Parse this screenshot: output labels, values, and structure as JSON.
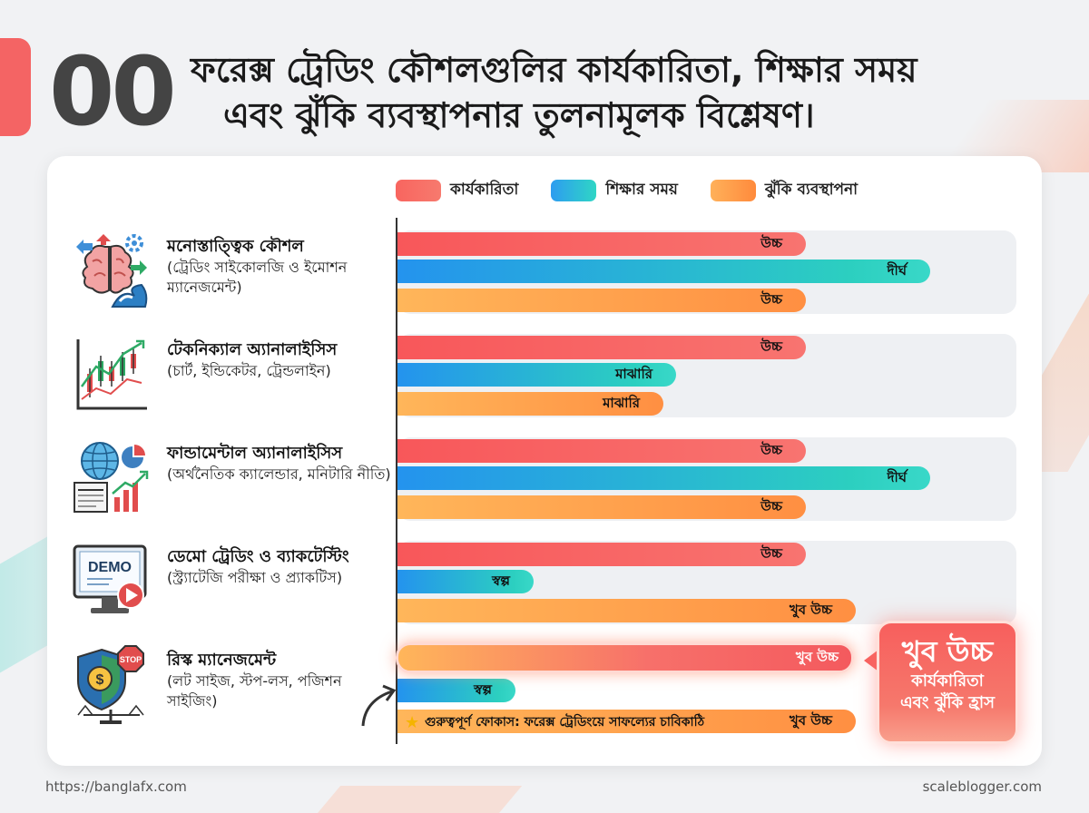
{
  "header": {
    "number": "00",
    "title_line1": "ফরেক্স ট্রেডিং কৌশলগুলির কার্যকারিতা, শিক্ষার সময়",
    "title_line2": "এবং ঝুঁকি ব্যবস্থাপনার তুলনামূলক বিশ্লেষণ।"
  },
  "legend": {
    "effectiveness": "কার্যকারিতা",
    "learning_time": "শিক্ষার সময়",
    "risk_management": "ঝুঁকি ব্যবস্থাপনা"
  },
  "colors": {
    "effectiveness": "#f8655f",
    "learning_time": "#2fc6c8",
    "risk_management": "#ff9a45"
  },
  "rows": [
    {
      "title": "মনোস্তাত্ত্বিক কৌশল",
      "subtitle": "(ট্রেডিং সাইকোলজি ও ইমোশন ম্যানেজমেন্ট)",
      "icon": "brain-gears-icon",
      "labels": [
        "উচ্চ",
        "দীর্ঘ",
        "উচ্চ"
      ]
    },
    {
      "title": "টেকনিক্যাল অ্যানালাইসিস",
      "subtitle": "(চার্ট, ইন্ডিকেটর, ট্রেন্ডলাইন)",
      "icon": "candlestick-chart-icon",
      "labels": [
        "উচ্চ",
        "মাঝারি",
        "মাঝারি"
      ]
    },
    {
      "title": "ফান্ডামেন্টাল অ্যানালাইসিস",
      "subtitle": "(অর্থনৈতিক ক্যালেন্ডার, মনিটারি নীতি)",
      "icon": "globe-news-icon",
      "labels": [
        "উচ্চ",
        "দীর্ঘ",
        "উচ্চ"
      ]
    },
    {
      "title": "ডেমো ট্রেডিং ও ব্যাকটেস্টিং",
      "subtitle": "(স্ট্র্যাটেজি পরীক্ষা ও প্র্যাকটিস)",
      "icon": "demo-monitor-icon",
      "icon_text": "DEMO",
      "labels": [
        "উচ্চ",
        "স্বল্প",
        "খুব উচ্চ"
      ]
    },
    {
      "title": "রিস্ক ম্যানেজমেন্ট",
      "subtitle": "(লট সাইজ, স্টপ-লস, পজিশন সাইজিং)",
      "icon": "shield-stop-icon",
      "icon_text": "STOP",
      "labels": [
        "খুব উচ্চ",
        "স্বল্প",
        "খুব উচ্চ"
      ]
    }
  ],
  "focus_note": "গুরুত্বপূর্ণ ফোকাস: ফরেক্স ট্রেডিংয়ে সাফল্যের চাবিকাঠি",
  "callout": {
    "big": "খুব উচ্চ",
    "line1": "কার্যকারিতা",
    "line2": "এবং ঝুঁকি হ্রাস"
  },
  "footer": {
    "left": "https://banglafx.com",
    "right": "scaleblogger.com"
  },
  "chart_data": {
    "type": "bar",
    "orientation": "horizontal",
    "categories": [
      "মনোস্তাত্ত্বিক কৌশল",
      "টেকনিক্যাল অ্যানালাইসিস",
      "ফান্ডামেন্টাল অ্যানালাইসিস",
      "ডেমো ট্রেডিং ও ব্যাকটেস্টিং",
      "রিস্ক ম্যানেজমেন্ট"
    ],
    "series": [
      {
        "name": "কার্যকারিতা",
        "values": [
          0.66,
          0.66,
          0.66,
          0.66,
          0.74
        ],
        "labels": [
          "উচ্চ",
          "উচ্চ",
          "উচ্চ",
          "উচ্চ",
          "খুব উচ্চ"
        ]
      },
      {
        "name": "শিক্ষার সময়",
        "values": [
          0.86,
          0.45,
          0.86,
          0.22,
          0.19
        ],
        "labels": [
          "দীর্ঘ",
          "মাঝারি",
          "দীর্ঘ",
          "স্বল্প",
          "স্বল্প"
        ]
      },
      {
        "name": "ঝুঁকি ব্যবস্থাপনা",
        "values": [
          0.66,
          0.43,
          0.66,
          0.74,
          0.74
        ],
        "labels": [
          "উচ্চ",
          "মাঝারি",
          "উচ্চ",
          "খুব উচ্চ",
          "খুব উচ্চ"
        ]
      }
    ],
    "legend_position": "top",
    "grid": false
  }
}
